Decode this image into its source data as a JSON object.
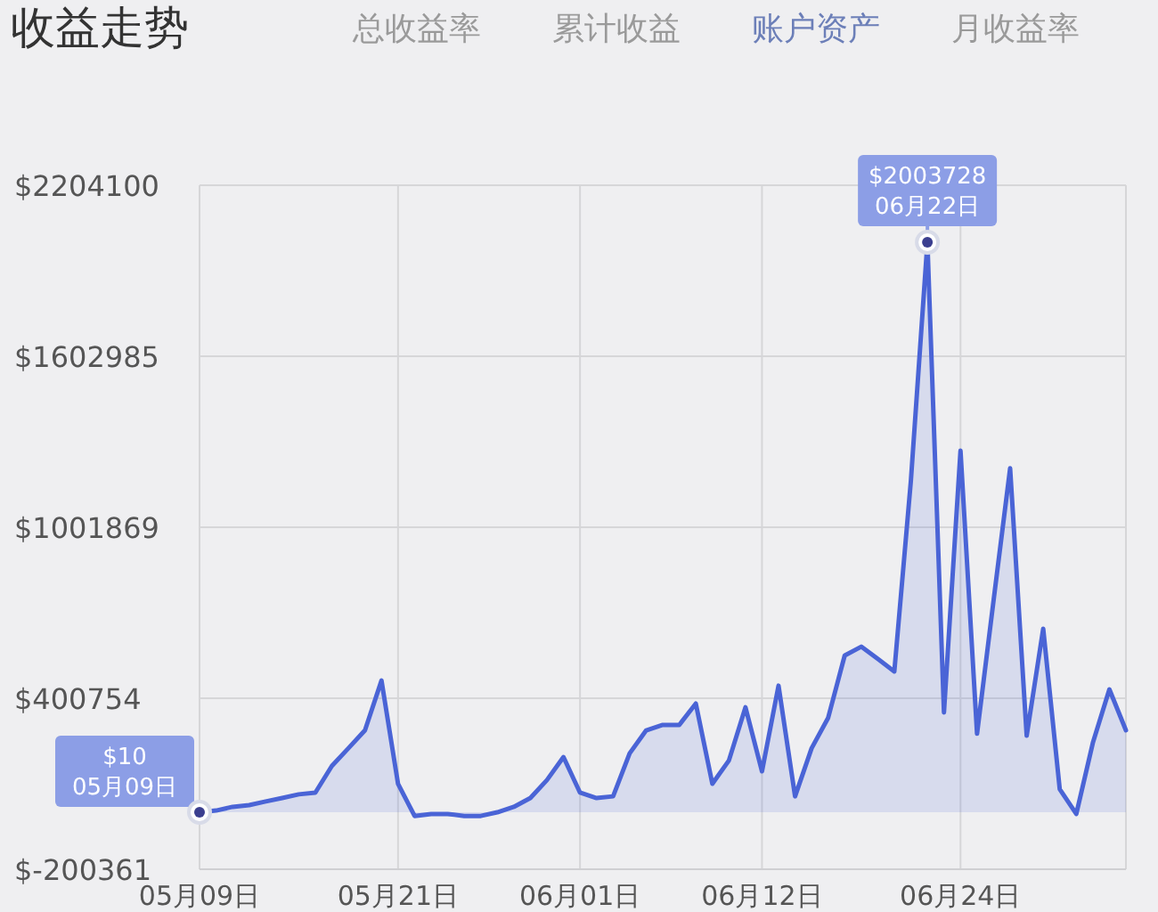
{
  "chart_data": {
    "type": "area",
    "title": "收益走势",
    "annotations": [
      "总收益率",
      "累计收益",
      "账户资产",
      "月收益率",
      {
        "text": "$10",
        "x": "--05-09",
        "y": 10
      },
      {
        "text": "05月09日",
        "x": "--05-09",
        "y": 10
      },
      {
        "text": "$2003728",
        "x": "--06-22",
        "y": 2003728
      },
      {
        "text": "06月22日",
        "x": "--06-22",
        "y": 2003728
      }
    ],
    "x": [
      "--05-09",
      "--05-10",
      "--05-11",
      "--05-12",
      "--05-13",
      "--05-14",
      "--05-15",
      "--05-16",
      "--05-17",
      "--05-18",
      "--05-19",
      "--05-20",
      "--05-21",
      "--05-22",
      "--05-23",
      "--05-24",
      "--05-25",
      "--05-26",
      "--05-27",
      "--05-28",
      "--05-29",
      "--05-30",
      "--05-31",
      "--06-01",
      "--06-02",
      "--06-03",
      "--06-04",
      "--06-05",
      "--06-06",
      "--06-07",
      "--06-08",
      "--06-09",
      "--06-10",
      "--06-11",
      "--06-12",
      "--06-13",
      "--06-14",
      "--06-15",
      "--06-16",
      "--06-17",
      "--06-18",
      "--06-19",
      "--06-20",
      "--06-21",
      "--06-22",
      "--06-23",
      "--06-24",
      "--06-25",
      "--06-26",
      "--06-27",
      "--06-28",
      "--06-29",
      "--06-30",
      "--07-01",
      "--07-02",
      "--07-03",
      "--07-04"
    ],
    "series": [
      {
        "color": "#4a64d6",
        "values": [
          10,
          6000,
          19000,
          25000,
          38000,
          50000,
          63000,
          69000,
          163000,
          225000,
          288000,
          463000,
          100000,
          -13000,
          -6000,
          -6000,
          -13000,
          -13000,
          0,
          19000,
          50000,
          113000,
          194000,
          69000,
          50000,
          56000,
          207000,
          288000,
          307000,
          307000,
          382000,
          100000,
          182000,
          369000,
          144000,
          445000,
          56000,
          225000,
          332000,
          551000,
          582000,
          539000,
          495000,
          1165000,
          2003728,
          351000,
          1271000,
          276000,
          745000,
          1209000,
          269000,
          645000,
          81000,
          -6000,
          244000,
          432000,
          288000
        ]
      }
    ],
    "xlim": [
      "--05-09",
      "--07-04"
    ],
    "xticks": [
      {
        "value": "--05-09",
        "label": "05月09日"
      },
      {
        "value": "--05-21",
        "label": "05月21日"
      },
      {
        "value": "--06-01",
        "label": "06月01日"
      },
      {
        "value": "--06-12",
        "label": "06月12日"
      },
      {
        "value": "--06-24",
        "label": "06月24日"
      }
    ],
    "ylim": [
      -200361,
      2204100
    ],
    "yticks": [
      {
        "value": -200361,
        "label": "$-200361"
      },
      {
        "value": 400754,
        "label": "$400754"
      },
      {
        "value": 1001869,
        "label": "$1001869"
      },
      {
        "value": 1602985,
        "label": "$1602985"
      },
      {
        "value": 2204100,
        "label": "$2204100"
      }
    ],
    "grid": true
  }
}
